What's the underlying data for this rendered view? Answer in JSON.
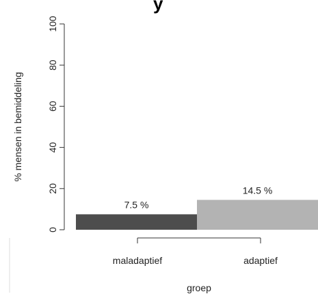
{
  "colors": {
    "background": "#ffffff",
    "bar_maladaptief": "#4d4d4d",
    "bar_adaptief": "#b3b3b3",
    "axis": "#333333",
    "text": "#222222"
  },
  "partial_title_fragment": "y",
  "chart_data": {
    "type": "bar",
    "categories": [
      "maladaptief",
      "adaptief"
    ],
    "values": [
      7.5,
      14.5
    ],
    "data_labels": [
      "7.5 %",
      "14.5 %"
    ],
    "title": "",
    "xlabel": "groep",
    "ylabel": "% mensen in bemiddeling",
    "ylim": [
      0,
      100
    ],
    "yticks": [
      0,
      20,
      40,
      60,
      80,
      100
    ],
    "ytick_labels": [
      "0",
      "20",
      "40",
      "60",
      "80",
      "100"
    ],
    "grid": false,
    "legend": "none"
  }
}
